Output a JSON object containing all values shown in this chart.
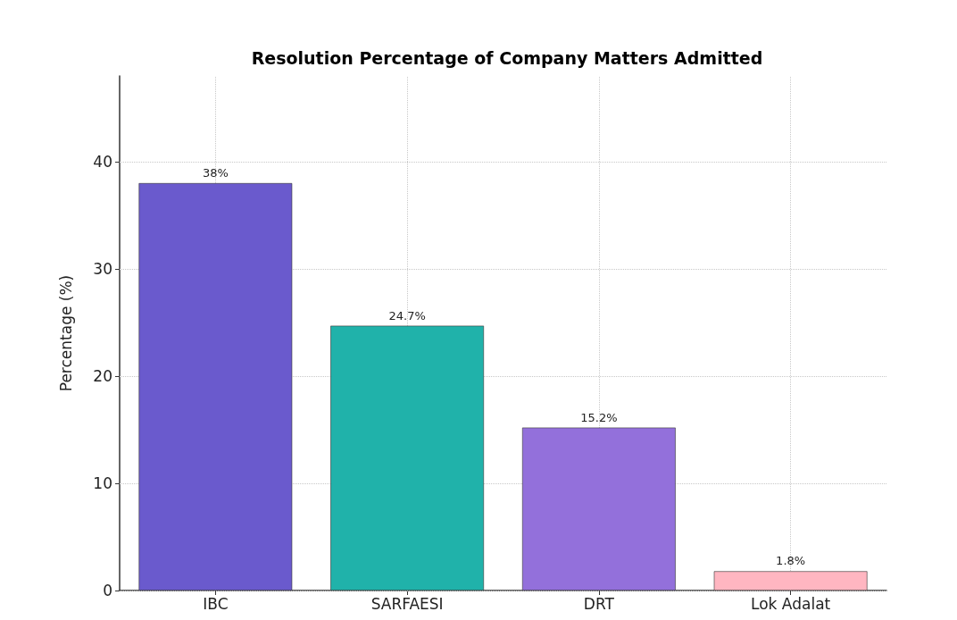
{
  "chart_data": {
    "type": "bar",
    "title": "Resolution Percentage of Company Matters Admitted",
    "ylabel": "Percentage (%)",
    "categories": [
      "IBC",
      "SARFAESI",
      "DRT",
      "Lok Adalat"
    ],
    "values": [
      38,
      24.7,
      15.2,
      1.8
    ],
    "colors": [
      "#6a5acd",
      "#20b2aa",
      "#9370db",
      "#ffb6c1"
    ],
    "value_labels": [
      "38%",
      "24.7%",
      "15.2%",
      "1.8%"
    ],
    "ylim": [
      0,
      48
    ],
    "yticks": [
      0,
      10,
      20,
      30,
      40
    ],
    "grid": true,
    "line_style": "dotted"
  }
}
